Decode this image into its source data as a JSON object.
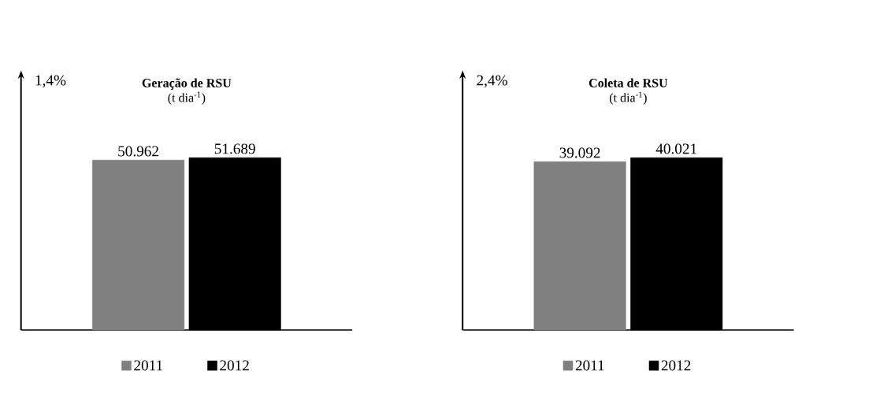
{
  "chart_data": [
    {
      "type": "bar",
      "title": "Geração de RSU",
      "subtitle": "(t dia$^{-1}$)",
      "categories": [
        null
      ],
      "series": [
        {
          "name": "2011",
          "color": "#808080",
          "values": [
            50962
          ],
          "value_labels": [
            "50.962"
          ]
        },
        {
          "name": "2012",
          "color": "#000000",
          "values": [
            51689
          ],
          "value_labels": [
            "51.689"
          ]
        }
      ],
      "annotations": [
        "1,4%"
      ],
      "legend": "bottom"
    },
    {
      "type": "bar",
      "title": "Coleta de RSU",
      "subtitle": "(t dia$^{-1}$)",
      "categories": [
        null
      ],
      "series": [
        {
          "name": "2011",
          "color": "#808080",
          "values": [
            39092
          ],
          "value_labels": [
            "39.092"
          ]
        },
        {
          "name": "2012",
          "color": "#000000",
          "values": [
            40021
          ],
          "value_labels": [
            "40.021"
          ]
        }
      ],
      "annotations": [
        "2,4%"
      ],
      "legend": "bottom"
    }
  ]
}
